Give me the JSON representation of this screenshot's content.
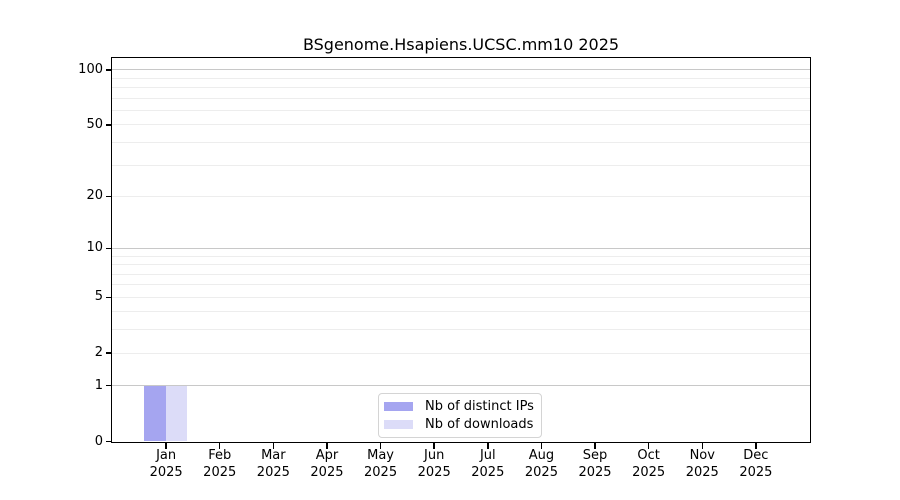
{
  "title": "BSgenome.Hsapiens.UCSC.mm10 2025",
  "chart_data": {
    "type": "bar",
    "title": "BSgenome.Hsapiens.UCSC.mm10 2025",
    "categories": [
      "Jan 2025",
      "Feb 2025",
      "Mar 2025",
      "Apr 2025",
      "May 2025",
      "Jun 2025",
      "Jul 2025",
      "Aug 2025",
      "Sep 2025",
      "Oct 2025",
      "Nov 2025",
      "Dec 2025"
    ],
    "series": [
      {
        "name": "Nb of distinct IPs",
        "color": "#a5a5f0",
        "values": [
          1,
          0,
          0,
          0,
          0,
          0,
          0,
          0,
          0,
          0,
          0,
          0
        ]
      },
      {
        "name": "Nb of downloads",
        "color": "#dcdcf8",
        "values": [
          1,
          0,
          0,
          0,
          0,
          0,
          0,
          0,
          0,
          0,
          0,
          0
        ]
      }
    ],
    "y_scale": "log1p",
    "ylim": [
      0,
      116
    ],
    "y_tick_values": [
      0,
      1,
      2,
      5,
      10,
      20,
      50,
      100
    ],
    "y_minor_gridline_values": [
      3,
      4,
      6,
      7,
      8,
      9,
      30,
      40,
      60,
      70,
      80,
      90
    ],
    "y_major_gridline_values": [
      1,
      10,
      100
    ],
    "grid": "horizontal",
    "legend_position": "lower center"
  },
  "legend": {
    "items": [
      {
        "label": "Nb of distinct IPs",
        "color": "#a5a5f0"
      },
      {
        "label": "Nb of downloads",
        "color": "#dcdcf8"
      }
    ]
  },
  "colors": {
    "bar_distinct_ips": "#a5a5f0",
    "bar_downloads": "#dcdcf8",
    "grid_major": "#c8c8c8",
    "grid_minor": "#ededed",
    "axis": "#000000",
    "legend_border": "#d4d4d4",
    "background": "#ffffff"
  }
}
